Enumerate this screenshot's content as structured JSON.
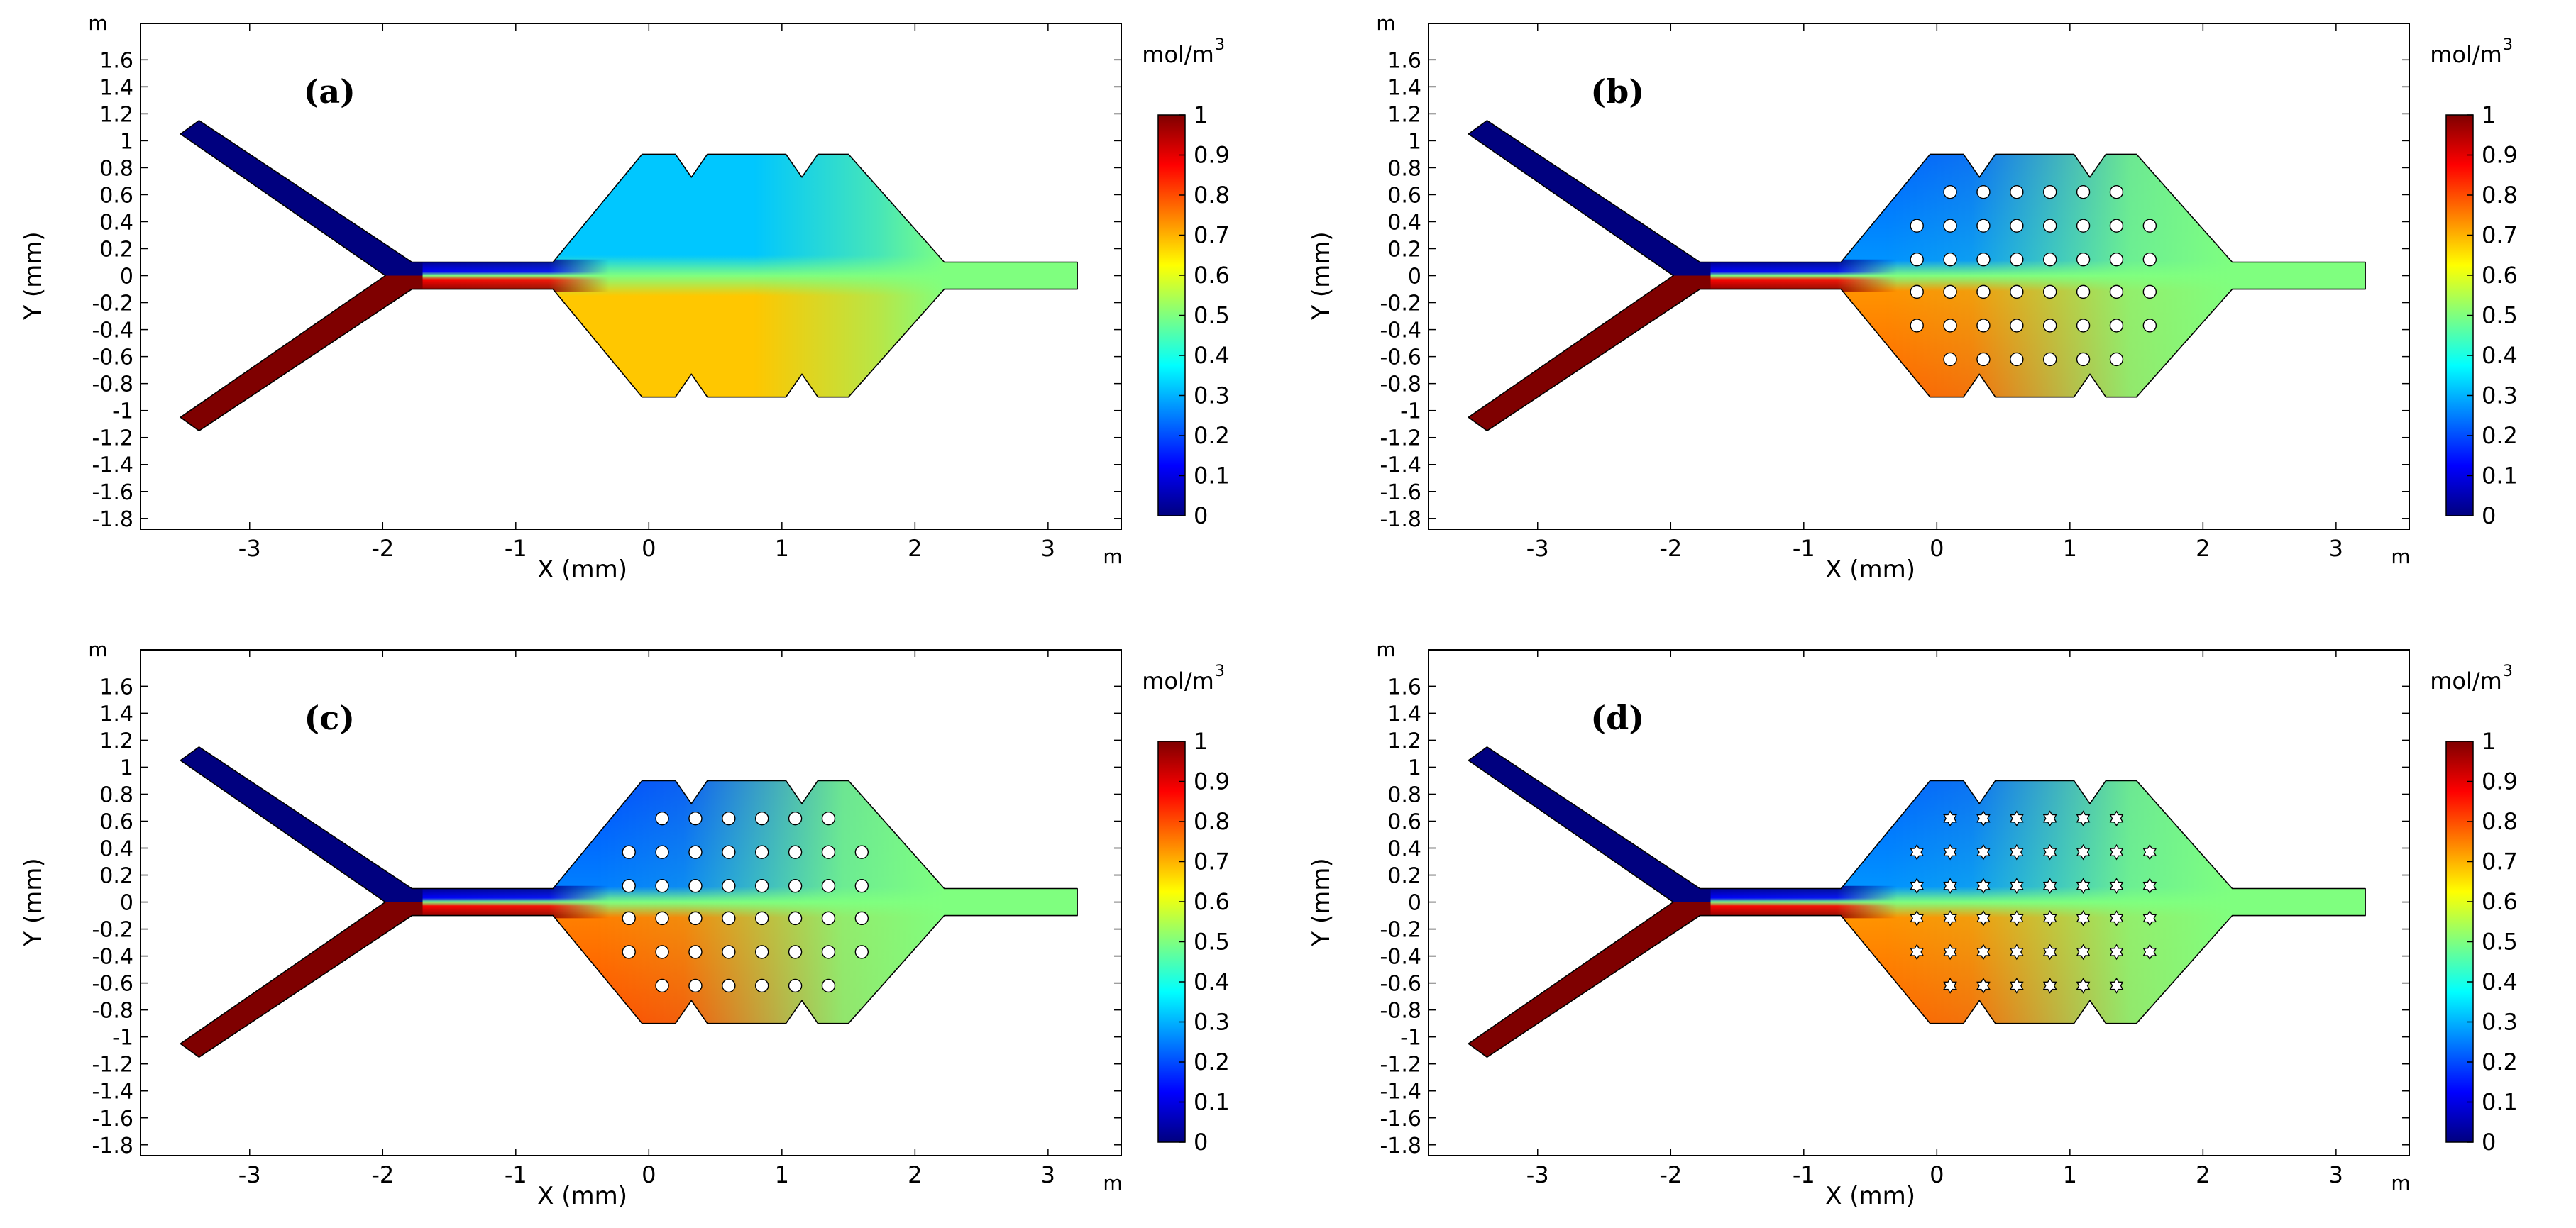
{
  "figure": {
    "unit_corner": "m",
    "colorbar_unit": "mol/m",
    "colorbar_unit_sup": "3",
    "colorbar_min": 0,
    "colorbar_max": 1,
    "colorbar_ticks": [
      "0",
      "0.1",
      "0.2",
      "0.3",
      "0.4",
      "0.5",
      "0.6",
      "0.7",
      "0.8",
      "0.9",
      "1"
    ],
    "colormap": [
      "#00007f",
      "#0000ff",
      "#007fff",
      "#00ffff",
      "#7fff7f",
      "#ffff00",
      "#ff7f00",
      "#ff0000",
      "#7f0000"
    ],
    "x_axis": {
      "label": "X (mm)",
      "ticks": [
        "-3",
        "-2",
        "-1",
        "0",
        "1",
        "2",
        "3"
      ],
      "values": [
        -3,
        -2,
        -1,
        0,
        1,
        2,
        3
      ],
      "range": [
        -3.82,
        3.55
      ]
    },
    "y_axis": {
      "label": "Y (mm)",
      "ticks": [
        "1.6",
        "1.4",
        "1.2",
        "1",
        "0.8",
        "0.6",
        "0.4",
        "0.2",
        "0",
        "-0.2",
        "-0.4",
        "-0.6",
        "-0.8",
        "-1",
        "-1.2",
        "-1.4",
        "-1.6",
        "-1.8"
      ],
      "values": [
        1.6,
        1.4,
        1.2,
        1,
        0.8,
        0.6,
        0.4,
        0.2,
        0,
        -0.2,
        -0.4,
        -0.6,
        -0.8,
        -1,
        -1.2,
        -1.4,
        -1.6,
        -1.8
      ],
      "range": [
        -1.88,
        1.87
      ]
    },
    "inlet_top_concentration": 0,
    "inlet_bottom_concentration": 1,
    "outlet_concentration": 0.5
  },
  "panels": [
    {
      "id": "a",
      "label": "(a)",
      "obstacles": "none",
      "chamber_top_concentration": 0.32,
      "chamber_bottom_concentration": 0.68,
      "mixing": "poor"
    },
    {
      "id": "b",
      "label": "(b)",
      "obstacles": "circular pillars",
      "chamber_top_concentration": 0.22,
      "chamber_bottom_concentration": 0.78,
      "mixing": "good"
    },
    {
      "id": "c",
      "label": "(c)",
      "obstacles": "circular pillars",
      "chamber_top_concentration": 0.2,
      "chamber_bottom_concentration": 0.8,
      "mixing": "good"
    },
    {
      "id": "d",
      "label": "(d)",
      "obstacles": "star pillars",
      "chamber_top_concentration": 0.22,
      "chamber_bottom_concentration": 0.78,
      "mixing": "good"
    }
  ]
}
